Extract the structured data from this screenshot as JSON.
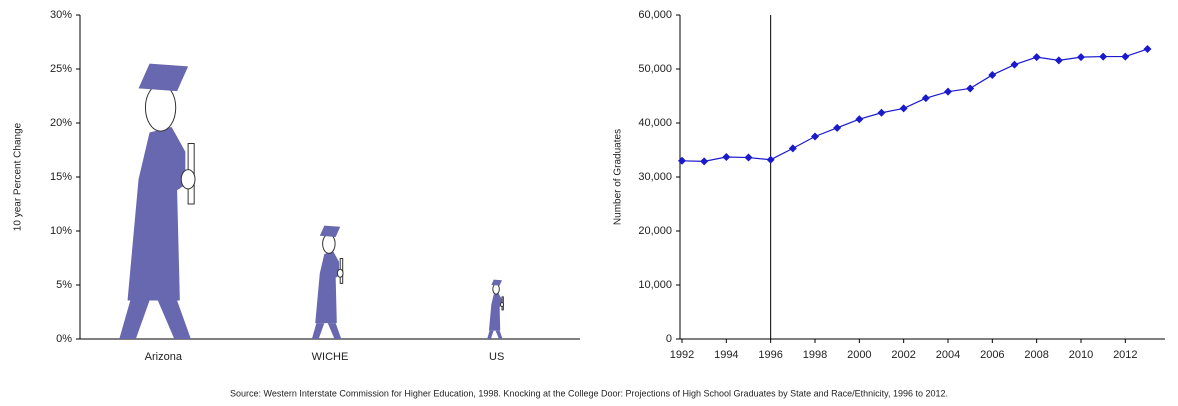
{
  "chart_data": [
    {
      "type": "pictograph",
      "ylabel": "10 year Percent Change",
      "categories": [
        "Arizona",
        "WICHE",
        "US"
      ],
      "values": [
        25.5,
        10.5,
        5.5
      ],
      "color": "#6868b0",
      "ylim": [
        0,
        30
      ],
      "yticks": [
        {
          "value": 0,
          "label": "0%"
        },
        {
          "value": 5,
          "label": "5%"
        },
        {
          "value": 10,
          "label": "10%"
        },
        {
          "value": 15,
          "label": "15%"
        },
        {
          "value": 20,
          "label": "20%"
        },
        {
          "value": 25,
          "label": "25%"
        },
        {
          "value": 30,
          "label": "30%"
        }
      ]
    },
    {
      "type": "line",
      "ylabel": "Number of Graduates",
      "x": [
        1992,
        1993,
        1994,
        1995,
        1996,
        1997,
        1998,
        1999,
        2000,
        2001,
        2002,
        2003,
        2004,
        2005,
        2006,
        2007,
        2008,
        2009,
        2010,
        2011,
        2012,
        2013
      ],
      "values": [
        33000,
        32900,
        33700,
        33600,
        33200,
        35300,
        37500,
        39100,
        40700,
        41900,
        42700,
        44600,
        45800,
        46400,
        48900,
        50800,
        52200,
        51600,
        52200,
        52300,
        52300,
        53700
      ],
      "color": "#1a1acc",
      "vline": 1996,
      "xlim": [
        1992,
        2013.7
      ],
      "xticks": [
        1992,
        1994,
        1996,
        1998,
        2000,
        2002,
        2004,
        2006,
        2008,
        2010,
        2012
      ],
      "ylim": [
        0,
        60000
      ],
      "yticks": [
        0,
        {
          "value": 10000,
          "label": "10,000"
        },
        {
          "value": 20000,
          "label": "20,000"
        },
        {
          "value": 30000,
          "label": "30,000"
        },
        {
          "value": 40000,
          "label": "40,000"
        },
        {
          "value": 50000,
          "label": "50,000"
        },
        {
          "value": 60000,
          "label": "60,000"
        }
      ]
    }
  ],
  "source": "Source: Western Interstate Commission for Higher Education, 1998. Knocking at the College Door: Projections of High School Graduates by State and Race/Ethnicity, 1996 to 2012."
}
